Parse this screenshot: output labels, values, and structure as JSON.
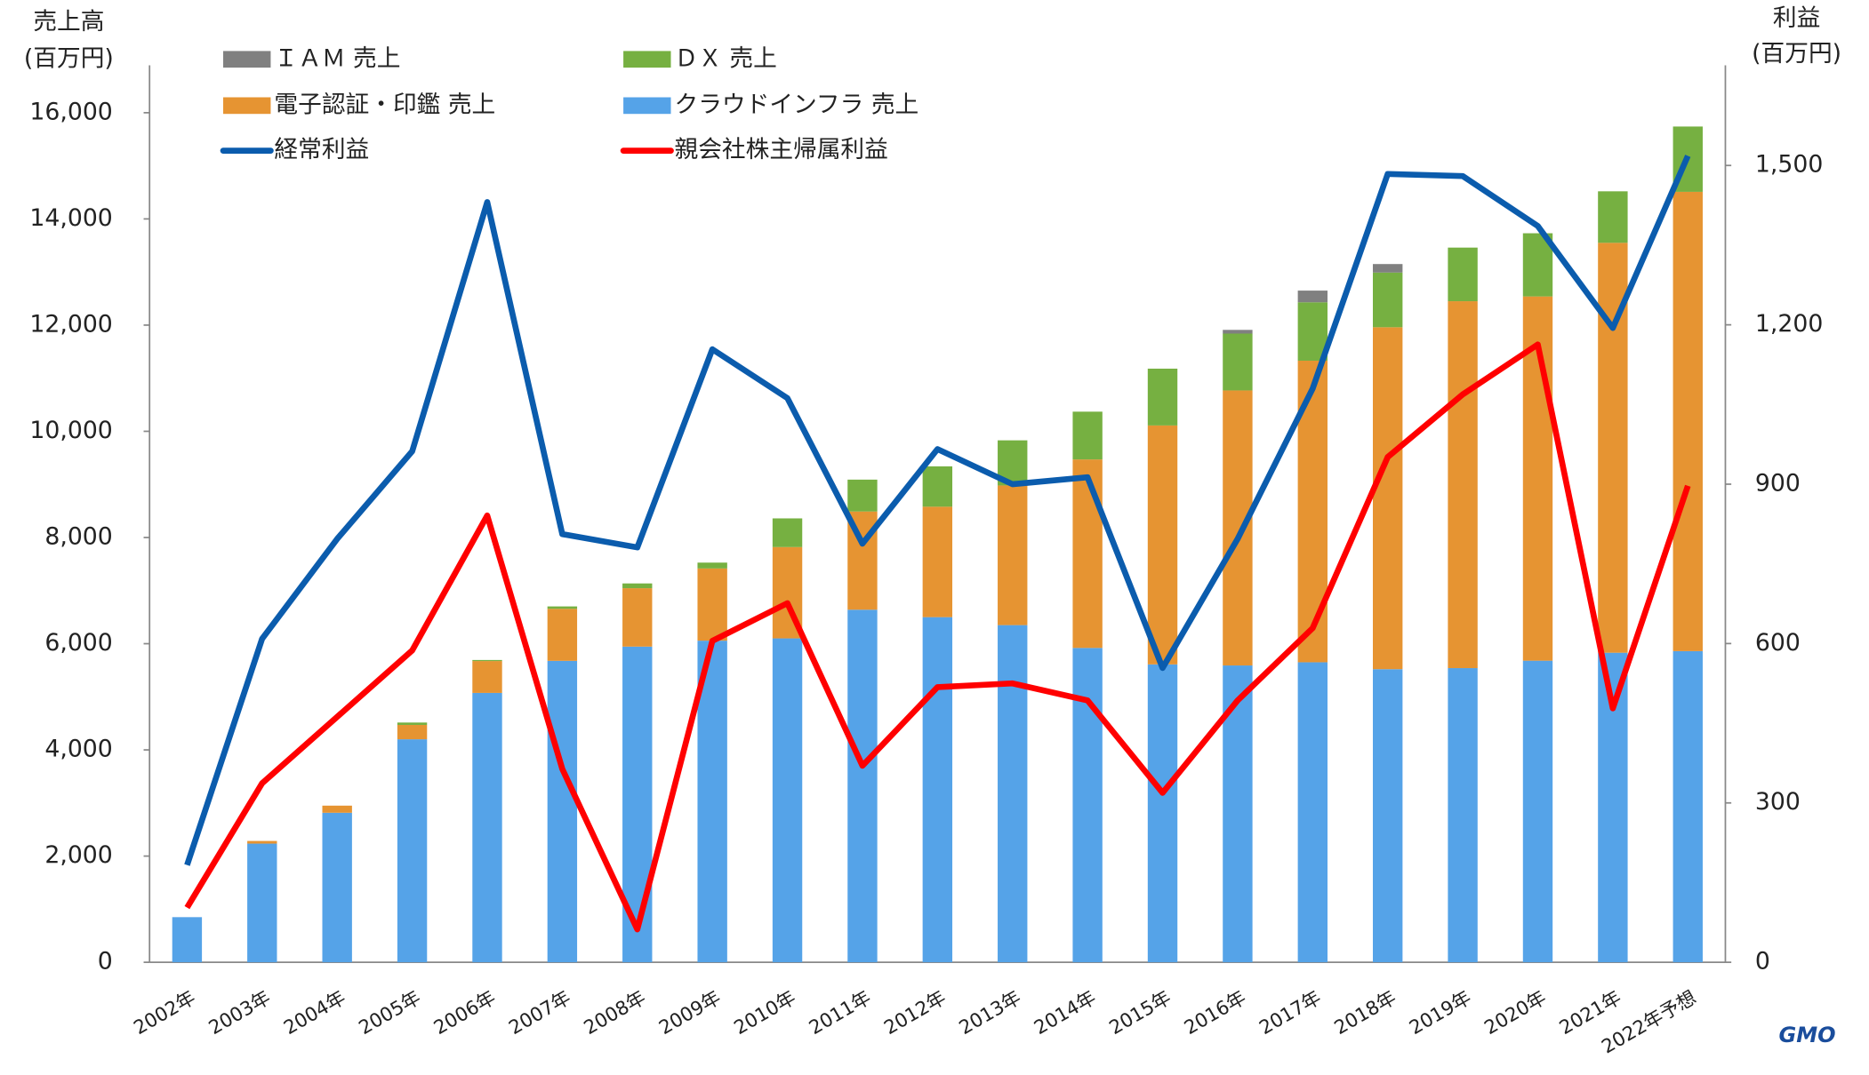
{
  "chart_data": {
    "type": "bar_line",
    "y_label": [
      "売上高",
      "(百万円)"
    ],
    "y2_label": [
      "利益",
      "(百万円)"
    ],
    "logo": "GMO",
    "categories": [
      "2002年",
      "2003年",
      "2004年",
      "2005年",
      "2006年",
      "2007年",
      "2008年",
      "2009年",
      "2010年",
      "2011年",
      "2012年",
      "2013年",
      "2014年",
      "2015年",
      "2016年",
      "2017年",
      "2018年",
      "2019年",
      "2020年",
      "2021年",
      "2022年予想"
    ],
    "ylim": [
      0,
      16000
    ],
    "yticks": [
      0,
      {
        "value": 2000,
        "label": "2,000"
      },
      {
        "value": 4000,
        "label": "4,000"
      },
      {
        "value": 6000,
        "label": "6,000"
      },
      {
        "value": 8000,
        "label": "8,000"
      },
      {
        "value": 10000,
        "label": "10,000"
      },
      {
        "value": 12000,
        "label": "12,000"
      },
      {
        "value": 14000,
        "label": "14,000"
      },
      {
        "value": 16000,
        "label": "16,000"
      }
    ],
    "y2lim": [
      0,
      1687.5
    ],
    "y2ticks": [
      0,
      300,
      600,
      900,
      {
        "value": 1200,
        "label": "1,200"
      },
      {
        "value": 1500,
        "label": "1,500"
      }
    ],
    "series": [
      {
        "name": "クラウドインフラ 売上",
        "type": "bar",
        "color": "#55a3e8",
        "values": [
          850,
          2235,
          2816,
          4200,
          5073,
          5677,
          5945,
          6057,
          6100,
          6640,
          6500,
          6350,
          5920,
          5610,
          5590,
          5650,
          5520,
          5540,
          5680,
          5830,
          5860
        ]
      },
      {
        "name": "電子認証・印鑑 売上",
        "type": "bar",
        "color": "#e69432",
        "values": [
          0,
          50,
          134,
          270,
          600,
          980,
          1100,
          1360,
          1720,
          1850,
          2080,
          2630,
          3550,
          4500,
          5180,
          5680,
          6440,
          6910,
          6860,
          7720,
          8650
        ]
      },
      {
        "name": "ＤＸ 売上",
        "type": "bar",
        "color": "#76b041",
        "values": [
          0,
          0,
          0,
          45,
          20,
          45,
          90,
          110,
          540,
          600,
          760,
          850,
          900,
          1070,
          1070,
          1100,
          1030,
          1010,
          1190,
          970,
          1230
        ]
      },
      {
        "name": "ＩＡＭ 売上",
        "type": "bar",
        "color": "#808080",
        "values": [
          0,
          0,
          0,
          0,
          0,
          0,
          0,
          0,
          0,
          0,
          0,
          0,
          0,
          0,
          70,
          220,
          160,
          0,
          0,
          0,
          0
        ]
      },
      {
        "name": "経常利益",
        "type": "line",
        "axis": "y2",
        "color": "#0b5cad",
        "values": [
          183,
          609,
          797,
          962,
          1431,
          806,
          781,
          1154,
          1062,
          788,
          966,
          900,
          913,
          554,
          797,
          1080,
          1484,
          1480,
          1386,
          1194,
          1518
        ]
      },
      {
        "name": "親会社株主帰属利益",
        "type": "line",
        "axis": "y2",
        "color": "#ff0000",
        "values": [
          103,
          337,
          462,
          587,
          841,
          364,
          62,
          605,
          676,
          370,
          518,
          525,
          493,
          319,
          493,
          629,
          951,
          1069,
          1163,
          478,
          897
        ]
      }
    ]
  }
}
